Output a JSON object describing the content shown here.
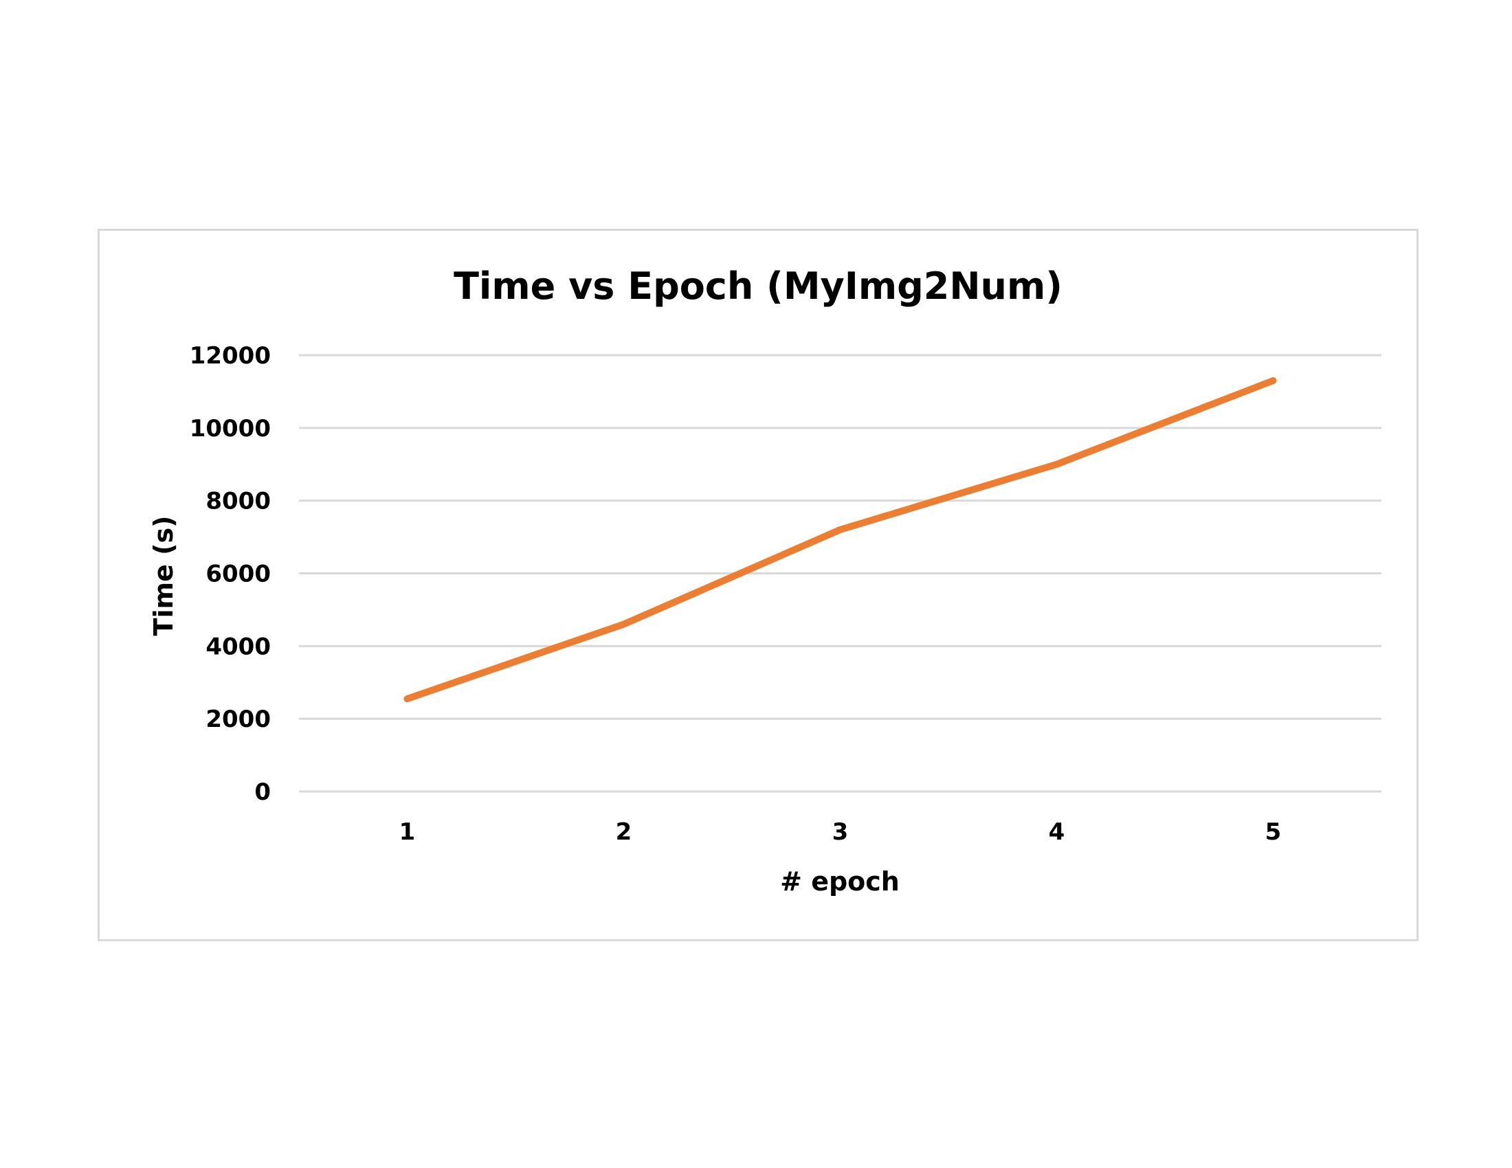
{
  "chart_data": {
    "type": "line",
    "title": "Time vs Epoch (MyImg2Num)",
    "xlabel": "# epoch",
    "ylabel": "Time (s)",
    "categories": [
      "1",
      "2",
      "3",
      "4",
      "5"
    ],
    "series": [
      {
        "values": [
          2550,
          4600,
          7200,
          9000,
          11300
        ],
        "color": "#ed7d31"
      }
    ],
    "ylim": [
      0,
      12000
    ],
    "yticks": [
      "0",
      "2000",
      "4000",
      "6000",
      "8000",
      "10000",
      "12000"
    ],
    "grid": true,
    "legend": "none"
  },
  "colors": {
    "gridline": "#d9d9d9",
    "line": "#ed7d31"
  }
}
